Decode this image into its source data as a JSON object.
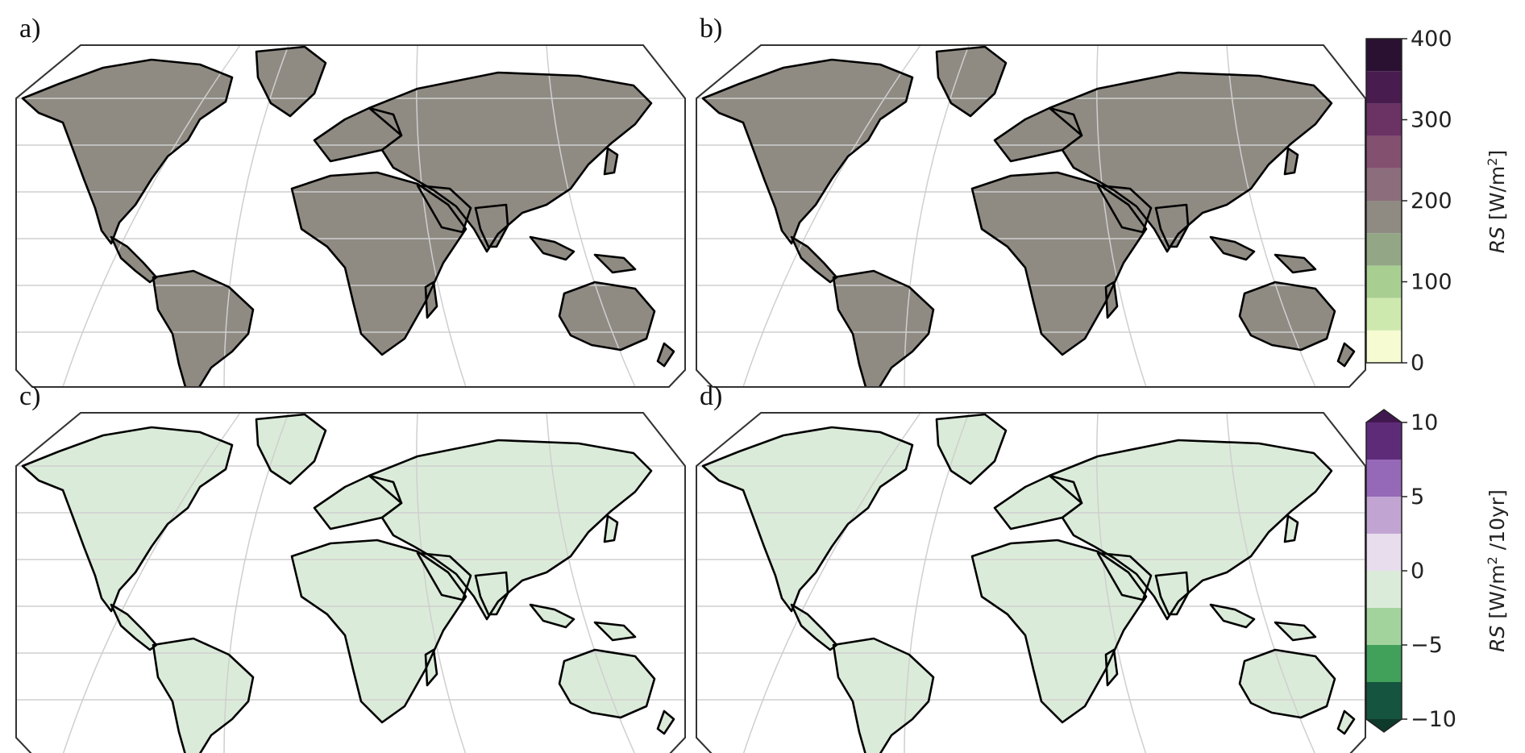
{
  "panels": [
    {
      "label": "a)",
      "scale": "abs",
      "variant": "a"
    },
    {
      "label": "b)",
      "scale": "abs",
      "variant": "b"
    },
    {
      "label": "c)",
      "scale": "trend",
      "variant": "c"
    },
    {
      "label": "d)",
      "scale": "trend",
      "variant": "d"
    }
  ],
  "colorbars": {
    "abs": {
      "ticks": [
        "400",
        "300",
        "200",
        "100",
        "0"
      ],
      "title_main": "RS",
      "title_unit": " [W/m",
      "title_sup": "2",
      "title_end": "]",
      "colors": [
        "#f6fbd1",
        "#cde9ae",
        "#a8cf91",
        "#93a685",
        "#8f8b83",
        "#8c6d7b",
        "#845070",
        "#6b3264",
        "#481c4f",
        "#2a1031"
      ]
    },
    "trend": {
      "ticks": [
        "10",
        "5",
        "0",
        "−5",
        "−10"
      ],
      "title_main": "RS",
      "title_unit": " [W/m",
      "title_sup": "2",
      "title_end": " /10yr]",
      "colors": [
        "#15543f",
        "#41a05a",
        "#a3d39c",
        "#dbebd9",
        "#e7dded",
        "#c2a4d3",
        "#9668b8",
        "#5e2b79"
      ],
      "extend_colors": {
        "low": "#0d3a2b",
        "high": "#40184f"
      }
    }
  },
  "map_colors": {
    "a": {
      "base": "#93a685",
      "mid": "#8f8b83",
      "warm": "#8c6d7b",
      "hot": "#845070",
      "cool": "#a8cf91",
      "cold": "#cde9ae"
    },
    "b": {
      "base": "#93a685",
      "mid": "#8f8b83",
      "warm": "#8c6d7b",
      "hot": "#845070",
      "cool": "#a8cf91",
      "cold": "#cde9ae"
    },
    "c": {
      "base": "#e7dded",
      "mid": "#dbebd9",
      "warm": "#c2a4d3",
      "hot": "#9668b8",
      "cool": "#dbebd9",
      "cold": "#a3d39c"
    },
    "d": {
      "base": "#e7dded",
      "mid": "#dbebd9",
      "warm": "#c2a4d3",
      "hot": "#9668b8",
      "cool": "#dbebd9",
      "cold": "#a3d39c"
    }
  }
}
